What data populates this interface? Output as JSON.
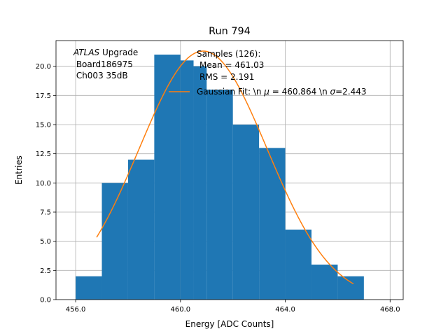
{
  "chart_data": {
    "type": "bar",
    "title": "Run 794",
    "xlabel": "Energy [ADC Counts]",
    "ylabel": "Entries",
    "xlim": [
      455.25,
      468.5
    ],
    "ylim": [
      0,
      22.2
    ],
    "grid": true,
    "x_ticks": [
      456,
      460,
      464,
      468
    ],
    "x_tick_labels": [
      "456.0",
      "460.0",
      "464.0",
      "468.0"
    ],
    "y_ticks": [
      0,
      2.5,
      5,
      7.5,
      10,
      12.5,
      15,
      17.5,
      20
    ],
    "y_tick_labels": [
      "0.0",
      "2.5",
      "5.0",
      "7.5",
      "10.0",
      "12.5",
      "15.0",
      "17.5",
      "20.0"
    ],
    "bins": [
      {
        "x0": 456,
        "x1": 457,
        "count": 2
      },
      {
        "x0": 457,
        "x1": 458,
        "count": 10
      },
      {
        "x0": 458,
        "x1": 459,
        "count": 12
      },
      {
        "x0": 459,
        "x1": 460,
        "count": 21
      },
      {
        "x0": 460,
        "x1": 460.5,
        "count": 20.5
      },
      {
        "x0": 460.5,
        "x1": 461,
        "count": 20
      },
      {
        "x0": 461,
        "x1": 462,
        "count": 18
      },
      {
        "x0": 462,
        "x1": 463,
        "count": 15
      },
      {
        "x0": 463,
        "x1": 464,
        "count": 13
      },
      {
        "x0": 464,
        "x1": 465,
        "count": 6
      },
      {
        "x0": 465,
        "x1": 466,
        "count": 3
      },
      {
        "x0": 466,
        "x1": 467,
        "count": 2
      }
    ],
    "fit": {
      "name": "Gaussian Fit: \\n $\\mu$ = 460.864 \\n $\\sigma$=2.443",
      "mu": 460.864,
      "sigma": 2.443,
      "amplitude": 21.3,
      "x_range": [
        456.8,
        466.6
      ]
    },
    "annotations": {
      "atlas_italic": "ATLAS",
      "atlas_rest": " Upgrade",
      "board": " Board186975",
      "channel": " Ch003 35dB",
      "samples": "Samples (126):",
      "mean": "Mean = 461.03",
      "rms": "RMS = 2.191"
    },
    "legend": {
      "entry_prefix": "Gaussian Fit: \\n ",
      "mu_symbol": "μ",
      "mu_value": " = 460.864 \\n ",
      "sigma_symbol": "σ",
      "sigma_value": "=2.443",
      "location": "upper-right"
    },
    "colors": {
      "bars": "#1f77b4",
      "fit": "#ff7f0e",
      "grid": "#b0b0b0",
      "axes": "#000000"
    }
  }
}
